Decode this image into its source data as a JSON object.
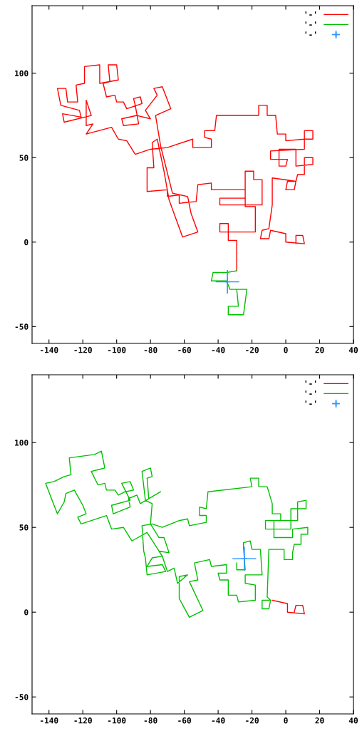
{
  "chart_data": [
    {
      "type": "line",
      "xlim": [
        -150,
        40
      ],
      "ylim": [
        -60,
        140
      ],
      "xticks": [
        -140,
        -120,
        -100,
        -80,
        -60,
        -40,
        -20,
        0,
        20,
        40
      ],
      "yticks": [
        -50,
        0,
        50,
        100
      ],
      "legend": "top right",
      "grid": false,
      "series": [
        {
          "name": "'-'",
          "color": "#ff0000",
          "x": [
            -29,
            -29,
            -34,
            -34,
            -39,
            -39,
            -18,
            -18,
            -24,
            -24,
            -19,
            -19,
            -14,
            -14,
            -39,
            -39,
            -24,
            -24,
            -44,
            -44,
            -52,
            -53,
            -63,
            -63,
            -70,
            -70,
            -82,
            -82,
            -78,
            -79,
            -76,
            -72,
            -69,
            -61,
            -52,
            -56,
            -58,
            -67,
            -74,
            -77,
            -68,
            -73,
            -78,
            -76,
            -83,
            -80,
            -88,
            -97,
            -96,
            -87,
            -89,
            -90,
            -86,
            -85,
            -94,
            -96,
            -100,
            -101,
            -106,
            -108,
            -104,
            -105,
            -100,
            -99,
            -110,
            -110,
            -119,
            -119,
            -124,
            -123,
            -129,
            -130,
            -135,
            -133,
            -122,
            -121,
            -132,
            -131,
            -115,
            -118,
            -118,
            -114,
            -118,
            -103,
            -99,
            -94,
            -89,
            -80,
            -70,
            -55,
            -55,
            -44,
            -44,
            -48,
            -48,
            -42,
            -41,
            -16,
            -16,
            -11,
            -11,
            -6,
            -5,
            0,
            0,
            11,
            11,
            16,
            16,
            11,
            11,
            -9,
            -9,
            1,
            0,
            -4,
            -4,
            6,
            6,
            16,
            16,
            11,
            11,
            7,
            6,
            1,
            0,
            5,
            6,
            -8,
            -8,
            -10,
            -14,
            -15,
            -10,
            -9,
            0,
            0,
            11,
            10,
            6,
            6
          ],
          "values": [
            -17,
            1,
            1,
            11,
            11,
            6,
            6,
            21,
            21,
            42,
            42,
            37,
            37,
            22,
            22,
            26,
            26,
            31,
            31,
            35,
            34,
            24,
            23,
            28,
            27,
            31,
            30,
            44,
            44,
            59,
            61,
            42,
            25,
            3,
            6,
            17,
            27,
            29,
            57,
            75,
            79,
            92,
            91,
            87,
            78,
            73,
            75,
            73,
            69,
            70,
            81,
            85,
            86,
            82,
            79,
            83,
            83,
            87,
            86,
            94,
            95,
            105,
            105,
            96,
            94,
            105,
            104,
            94,
            93,
            83,
            83,
            91,
            91,
            81,
            78,
            74,
            76,
            71,
            75,
            84,
            69,
            70,
            64,
            68,
            61,
            60,
            52,
            55,
            56,
            61,
            56,
            56,
            61,
            62,
            66,
            66,
            75,
            75,
            81,
            81,
            75,
            75,
            64,
            64,
            60,
            61,
            66,
            66,
            61,
            61,
            55,
            54,
            49,
            49,
            45,
            45,
            55,
            55,
            45,
            46,
            50,
            50,
            40,
            40,
            36,
            36,
            31,
            31,
            36,
            38,
            22,
            8,
            7,
            2,
            2,
            7,
            5,
            0,
            -1,
            4,
            4,
            -1
          ]
        },
        {
          "name": "'-'",
          "color": "#00c000",
          "x": [
            -29,
            -35,
            -43,
            -44,
            -35,
            -33,
            -23,
            -25,
            -34,
            -34,
            -28,
            -29
          ],
          "values": [
            -17,
            -18,
            -18,
            -23,
            -23,
            -28,
            -28,
            -43,
            -43,
            -38,
            -38,
            -28
          ]
        },
        {
          "name": "'-'",
          "type": "scatter",
          "marker": "cross",
          "color": "#3399ff",
          "x": [
            -34.5
          ],
          "values": [
            -23.5
          ],
          "errors": [
            7
          ],
          "xerrors": [
            7
          ]
        }
      ]
    },
    {
      "type": "line",
      "xlim": [
        -150,
        40
      ],
      "ylim": [
        -60,
        140
      ],
      "xticks": [
        -140,
        -120,
        -100,
        -80,
        -60,
        -40,
        -20,
        0,
        20,
        40
      ],
      "yticks": [
        -50,
        0,
        50,
        100
      ],
      "legend": "top right",
      "grid": false,
      "series": [
        {
          "name": "'-'",
          "color": "#ff0000",
          "x": [
            -8,
            1,
            1,
            11,
            10,
            6,
            5
          ],
          "values": [
            7,
            5,
            0,
            -1,
            4,
            4,
            0
          ]
        },
        {
          "name": "'-'",
          "color": "#00c000",
          "x": [
            -9,
            -14,
            -14,
            -10,
            -9,
            -11,
            -10,
            -1,
            -1,
            4,
            4,
            5,
            9,
            9,
            13,
            13,
            4,
            4,
            -7,
            -7,
            7,
            7,
            12,
            12,
            3,
            3,
            -12,
            -12,
            -3,
            -3,
            -8,
            -8,
            -11,
            -16,
            -16,
            -21,
            -20,
            -46,
            -47,
            -51,
            -51,
            -47,
            -47,
            -57,
            -58,
            -63,
            -73,
            -79,
            -85,
            -84,
            -83,
            -82,
            -71,
            -73,
            -82,
            -79,
            -73,
            -75,
            -69,
            -72,
            -75,
            -80,
            -79,
            -83,
            -85,
            -80,
            -79,
            -82,
            -81,
            -74,
            -86,
            -88,
            -93,
            -92,
            -102,
            -103,
            -92,
            -97,
            -92,
            -90,
            -95,
            -99,
            -101,
            -106,
            -107,
            -111,
            -115,
            -111,
            -107,
            -109,
            -113,
            -128,
            -127,
            -131,
            -137,
            -142,
            -137,
            -135,
            -131,
            -130,
            -125,
            -120,
            -118,
            -123,
            -121,
            -106,
            -103,
            -96,
            -91,
            -82,
            -73,
            -70,
            -66,
            -64,
            -58,
            -63,
            -63,
            -57,
            -49,
            -57,
            -52,
            -54,
            -45,
            -44,
            -35,
            -35,
            -40,
            -39,
            -34,
            -34,
            -29,
            -28,
            -18,
            -18,
            -24,
            -24,
            -14,
            -15,
            -20,
            -21,
            -25,
            -25,
            -24,
            -29,
            -29
          ],
          "values": [
            7,
            7,
            2,
            2,
            7,
            9,
            37,
            37,
            31,
            31,
            35,
            40,
            40,
            46,
            46,
            50,
            49,
            44,
            44,
            54,
            54,
            65,
            66,
            61,
            61,
            49,
            49,
            54,
            54,
            58,
            58,
            64,
            74,
            74,
            79,
            79,
            74,
            71,
            61,
            62,
            57,
            57,
            53,
            51,
            55,
            54,
            50,
            52,
            51,
            36,
            32,
            22,
            24,
            28,
            27,
            32,
            33,
            36,
            35,
            44,
            44,
            52,
            64,
            66,
            83,
            85,
            80,
            79,
            67,
            71,
            64,
            69,
            67,
            62,
            58,
            63,
            66,
            76,
            77,
            72,
            71,
            69,
            72,
            72,
            76,
            75,
            83,
            84,
            85,
            95,
            93,
            91,
            81,
            80,
            77,
            76,
            63,
            58,
            65,
            70,
            72,
            63,
            58,
            56,
            52,
            57,
            49,
            50,
            42,
            47,
            33,
            24,
            26,
            17,
            22,
            21,
            8,
            -3,
            1,
            18,
            19,
            29,
            31,
            27,
            28,
            23,
            23,
            19,
            19,
            10,
            10,
            6,
            7,
            16,
            17,
            22,
            22,
            37,
            37,
            42,
            41,
            38,
            25,
            25,
            29
          ]
        },
        {
          "name": "'-'",
          "type": "scatter",
          "marker": "cross",
          "color": "#3399ff",
          "x": [
            -24.5
          ],
          "values": [
            31.5
          ],
          "errors": [
            7
          ],
          "xerrors": [
            7
          ]
        }
      ]
    }
  ]
}
